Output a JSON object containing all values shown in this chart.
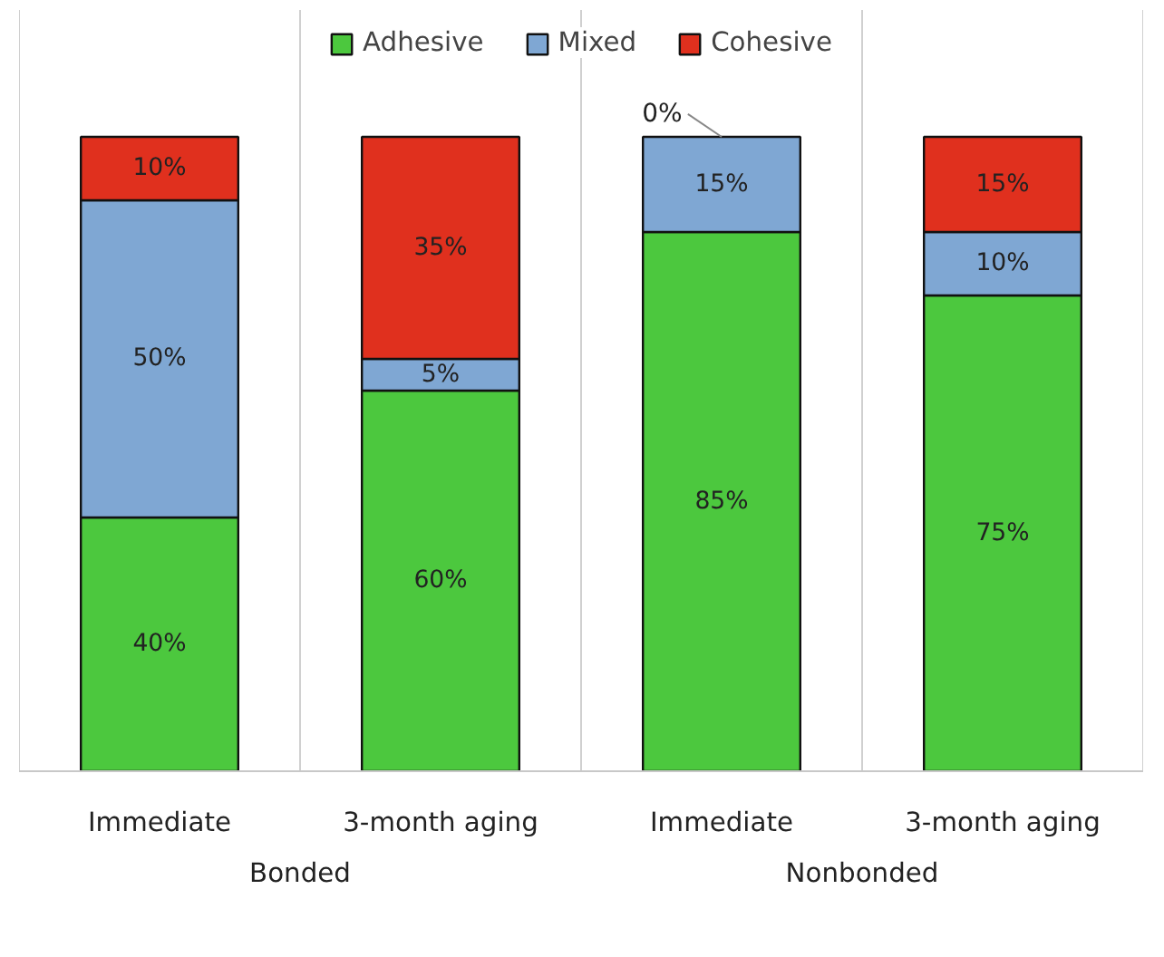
{
  "chart_data": {
    "type": "bar",
    "stacked": true,
    "legend": "top",
    "categories": [
      "Immediate",
      "3-month aging",
      "Immediate",
      "3-month aging"
    ],
    "series": [
      {
        "name": "Adhesive",
        "color": "#4cc83e",
        "values": [
          40,
          60,
          85,
          75
        ],
        "value_labels": [
          "40%",
          "60%",
          "85%",
          "75%"
        ]
      },
      {
        "name": "Mixed",
        "color": "#7fa7d3",
        "values": [
          50,
          5,
          15,
          10
        ],
        "value_labels": [
          "50%",
          "5%",
          "15%",
          "10%"
        ]
      },
      {
        "name": "Cohesive",
        "color": "#e0301e",
        "values": [
          10,
          35,
          0,
          15
        ],
        "value_labels": [
          "10%",
          "35%",
          "0%",
          "15%"
        ]
      }
    ],
    "annotations": [
      "Bonded",
      "Nonbonded"
    ]
  }
}
